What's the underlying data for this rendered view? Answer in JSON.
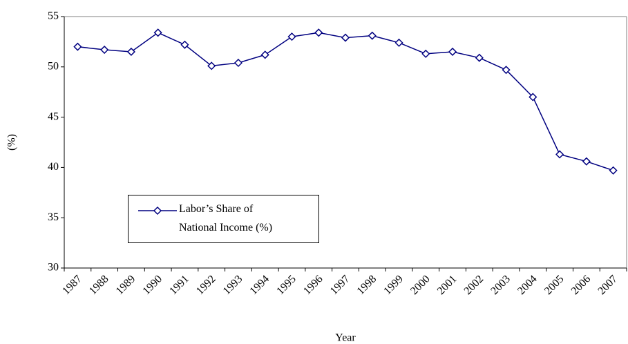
{
  "chart_data": {
    "type": "line",
    "x_label": "Year",
    "y_label": "(%)",
    "categories": [
      "1987",
      "1988",
      "1989",
      "1990",
      "1991",
      "1992",
      "1993",
      "1994",
      "1995",
      "1996",
      "1997",
      "1998",
      "1999",
      "2000",
      "2001",
      "2002",
      "2003",
      "2004",
      "2005",
      "2006",
      "2007"
    ],
    "series": [
      {
        "name": "Labor’s Share of National Income (%)",
        "color": "#000080",
        "values": [
          52.0,
          51.7,
          51.5,
          53.4,
          52.2,
          50.1,
          50.4,
          51.2,
          53.0,
          53.4,
          52.9,
          53.1,
          52.4,
          51.3,
          51.5,
          50.9,
          49.7,
          47.0,
          41.3,
          40.6,
          39.7
        ]
      }
    ],
    "ylim": [
      30,
      55
    ],
    "yticks": [
      30,
      35,
      40,
      45,
      50,
      55
    ],
    "legend": "lower-left",
    "grid": false
  }
}
